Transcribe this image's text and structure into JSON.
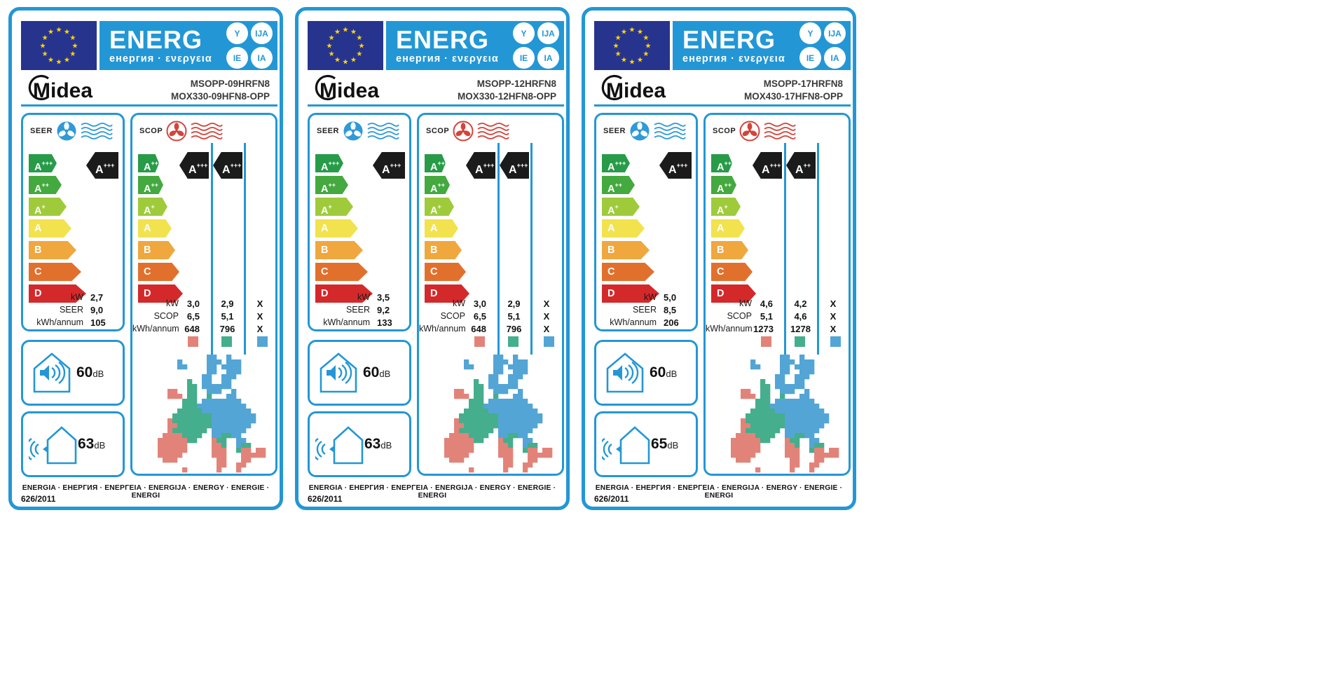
{
  "doc": {
    "kind": "EU energy labels for air conditioners"
  },
  "colors": {
    "accent": "#2397d5",
    "flag_bg": "#27348e",
    "star": "#ffd500",
    "rating_arrow": "#1b1b1b",
    "zones": {
      "warm": "#e2837a",
      "average": "#45ae8c",
      "cold": "#53a5d5"
    }
  },
  "header": {
    "word": "ENERG",
    "subtitle": "енергия · ενεργεια",
    "circles": [
      "Y",
      "IJA",
      "IE",
      "IA"
    ]
  },
  "brand": "Midea",
  "scale": {
    "classes": [
      {
        "label": "A+++",
        "color": "#279b48"
      },
      {
        "label": "A++",
        "color": "#44a93e"
      },
      {
        "label": "A+",
        "color": "#9fcb3b"
      },
      {
        "label": "A",
        "color": "#f2e24e"
      },
      {
        "label": "B",
        "color": "#efa73e"
      },
      {
        "label": "C",
        "color": "#e2702d"
      },
      {
        "label": "D",
        "color": "#d4292b"
      }
    ]
  },
  "row_labels": {
    "power": "kW",
    "seer": "SEER",
    "scop": "SCOP",
    "annual": "kWh/annum"
  },
  "section_titles": {
    "cooling": "SEER",
    "heating": "SCOP"
  },
  "noise_unit": "dB",
  "footer": {
    "languages": "ENERGIA · ЕНЕРГИЯ · ΕΝΕΡΓΕΙΑ · ENERGIJA · ENERGY · ENERGIE · ENERGI",
    "regulation": "626/2011"
  },
  "map_grid": [
    "..........bb..b.......",
    "....b.....bbb.bbb.....",
    "....bb....bb.bbbb.....",
    "..........bb..bbb.....",
    ".........bb..bbb......",
    "......g..bb..bb.......",
    "......gg.bbbbbb.......",
    "..rr..gg..bbb..b......",
    "..rrr.gg..g...bb......",
    ".....ggg.bbbbbbbb.....",
    ".....gggbbbbbbbbbb....",
    "....gggggbbbbbbbbbb...",
    "...ggggggggbbbbbbbbb..",
    "..rggggggggbbbbbbbbb..",
    "..rrgggggggbbbbbbbb...",
    "..rggggggg.bbbbbbb....",
    ".rrrrgggg..bbggbb.....",
    "rrrrrrgg...rgg..bb....",
    "rrrrrr.....rrg..bgg...",
    "rrrrrr.....rrr..grr.rr",
    "rrrrr......rrr...rrrrr",
    ".rrr........rr...rr...",
    "............rr..rr....",
    ".....r......r...r.....",
    "......................"
  ],
  "labels": [
    {
      "model_line1": "MSOPP-09HRFN8",
      "model_line2": "MOX330-09HFN8-OPP",
      "seer": {
        "rating": "A+++",
        "kw": "2,7",
        "value": "9,0",
        "annual": "105"
      },
      "scop": {
        "warm": {
          "rating": "A+++",
          "kw": "3,0",
          "value": "6,5",
          "annual": "648"
        },
        "average": {
          "rating": "A+++",
          "kw": "2,9",
          "value": "5,1",
          "annual": "796"
        },
        "cold": {
          "rating": "",
          "kw": "X",
          "value": "X",
          "annual": "X"
        }
      },
      "noise": {
        "indoor": "60",
        "outdoor": "63"
      }
    },
    {
      "model_line1": "MSOPP-12HRFN8",
      "model_line2": "MOX330-12HFN8-OPP",
      "seer": {
        "rating": "A+++",
        "kw": "3,5",
        "value": "9,2",
        "annual": "133"
      },
      "scop": {
        "warm": {
          "rating": "A+++",
          "kw": "3,0",
          "value": "6,5",
          "annual": "648"
        },
        "average": {
          "rating": "A+++",
          "kw": "2,9",
          "value": "5,1",
          "annual": "796"
        },
        "cold": {
          "rating": "",
          "kw": "X",
          "value": "X",
          "annual": "X"
        }
      },
      "noise": {
        "indoor": "60",
        "outdoor": "63"
      }
    },
    {
      "model_line1": "MSOPP-17HRFN8",
      "model_line2": "MOX430-17HFN8-OPP",
      "seer": {
        "rating": "A+++",
        "kw": "5,0",
        "value": "8,5",
        "annual": "206"
      },
      "scop": {
        "warm": {
          "rating": "A+++",
          "kw": "4,6",
          "value": "5,1",
          "annual": "1273"
        },
        "average": {
          "rating": "A++",
          "kw": "4,2",
          "value": "4,6",
          "annual": "1278"
        },
        "cold": {
          "rating": "",
          "kw": "X",
          "value": "X",
          "annual": "X"
        }
      },
      "noise": {
        "indoor": "60",
        "outdoor": "65"
      }
    }
  ]
}
